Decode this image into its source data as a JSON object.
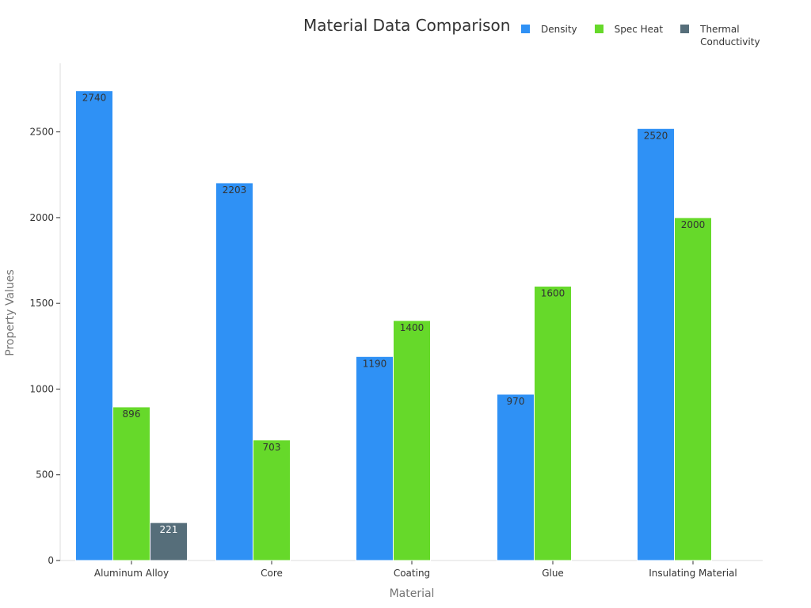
{
  "chart_data": {
    "type": "bar",
    "title": "Material Data Comparison",
    "xlabel": "Material",
    "ylabel": "Property Values",
    "categories": [
      "Aluminum Alloy",
      "Core",
      "Coating",
      "Glue",
      "Insulating Material"
    ],
    "series": [
      {
        "name": "Density",
        "color": "#2f91f5",
        "values": [
          2740,
          2203,
          1190,
          970,
          2520
        ]
      },
      {
        "name": "Spec Heat",
        "color": "#66d92a",
        "values": [
          896,
          703,
          1400,
          1600,
          2000
        ]
      },
      {
        "name": "Thermal Conductivity",
        "color": "#566e7a",
        "values": [
          221,
          0,
          0,
          0,
          0
        ]
      }
    ],
    "ylim": [
      0,
      2900
    ],
    "yticks": [
      0,
      500,
      1000,
      1500,
      2000,
      2500
    ],
    "grid": false,
    "legend_position": "top-right"
  }
}
